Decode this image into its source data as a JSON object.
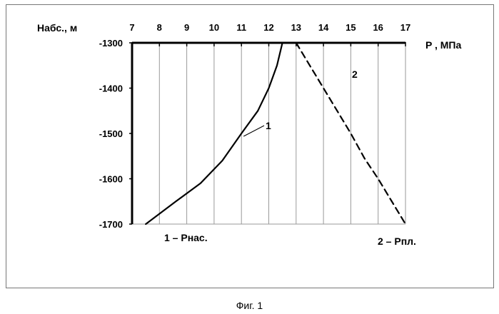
{
  "chart_data": {
    "type": "line",
    "xlabel": "P , МПа",
    "ylabel": "Набс., м",
    "xlim": [
      7,
      17
    ],
    "ylim": [
      -1700,
      -1300
    ],
    "x_ticks": [
      7,
      8,
      9,
      10,
      11,
      12,
      13,
      14,
      15,
      16,
      17
    ],
    "y_ticks": [
      -1300,
      -1400,
      -1500,
      -1600,
      -1700
    ],
    "grid": true,
    "series": [
      {
        "name": "1 – Рнас.",
        "label": "1",
        "style": "solid",
        "points": [
          [
            7.5,
            -1700
          ],
          [
            8.6,
            -1650
          ],
          [
            9.5,
            -1610
          ],
          [
            10.3,
            -1560
          ],
          [
            11.0,
            -1500
          ],
          [
            11.6,
            -1450
          ],
          [
            12.0,
            -1400
          ],
          [
            12.3,
            -1350
          ],
          [
            12.5,
            -1300
          ]
        ]
      },
      {
        "name": "2 – Рпл.",
        "label": "2",
        "style": "dashed",
        "points": [
          [
            13.0,
            -1300
          ],
          [
            14.0,
            -1400
          ],
          [
            15.0,
            -1500
          ],
          [
            15.5,
            -1555
          ],
          [
            16.0,
            -1600
          ],
          [
            17.0,
            -1700
          ]
        ]
      }
    ]
  },
  "caption": "Фиг. 1"
}
